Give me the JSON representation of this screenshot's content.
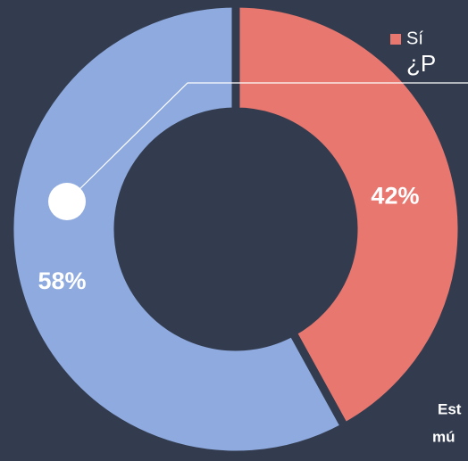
{
  "chart_data": {
    "type": "pie",
    "title": "¿P",
    "categories": [
      "Sí",
      null
    ],
    "values": [
      42,
      58
    ],
    "value_labels": [
      "42%",
      "58%"
    ],
    "colors": [
      "#e8776f",
      "#8eaadf"
    ],
    "hole": true,
    "annotations": [
      "Est",
      "mú"
    ]
  }
}
